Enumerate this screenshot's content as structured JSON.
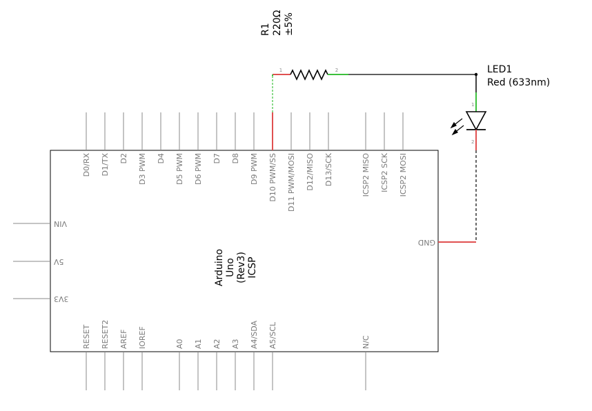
{
  "resistor": {
    "name": "R1",
    "value": "220Ω",
    "tolerance": "±5%",
    "pin1": "1",
    "pin2": "2"
  },
  "led": {
    "name": "LED1",
    "description": "Red (633nm)",
    "pin1": "1",
    "pin2": "2"
  },
  "board": {
    "title_lines": [
      "Arduino",
      "Uno",
      "(Rev3)",
      "ICSP"
    ],
    "top_pins": [
      "D0/RX",
      "D1/TX",
      "D2",
      "D3 PWM",
      "D4",
      "D5 PWM",
      "D6 PWM",
      "D7",
      "D8",
      "D9 PWM",
      "D10 PWM/SS",
      "D11 PWM/MOSI",
      "D12/MISO",
      "D13/SCK",
      "ICSP2 MISO",
      "ICSP2 SCK",
      "ICSP2 MOSI"
    ],
    "bottom_pins": [
      "RESET",
      "RESET2",
      "AREF",
      "IOREF",
      "A0",
      "A1",
      "A2",
      "A3",
      "A4/SDA",
      "A5/SCL",
      "N/C"
    ],
    "left_pins": [
      "VIN",
      "5V",
      "3V3"
    ],
    "right_pins": [
      "GND"
    ]
  },
  "colors": {
    "wire": "#000000",
    "connected_pin": "#e05050",
    "end_highlight": "#3cc03c",
    "pin_gray": "#8a8a8a"
  }
}
